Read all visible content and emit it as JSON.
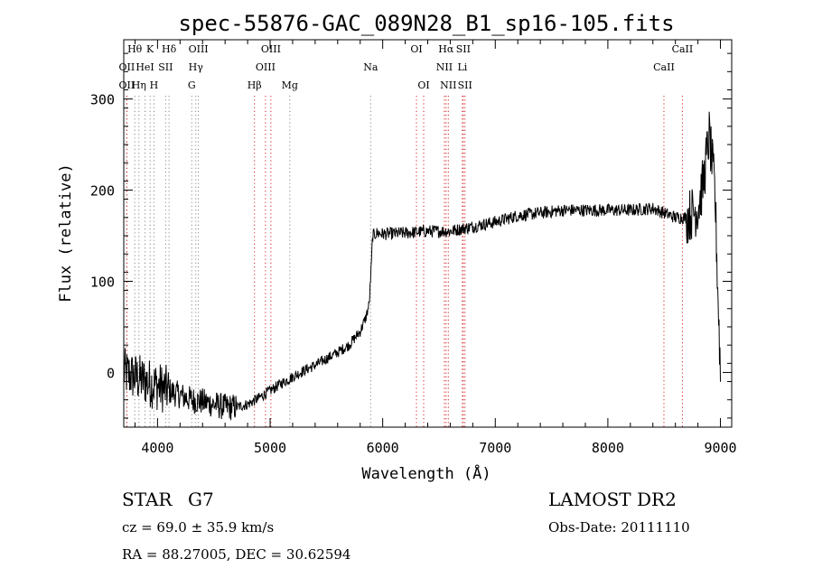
{
  "chart_data": {
    "type": "line",
    "title": "spec-55876-GAC_089N28_B1_sp16-105.fits",
    "xlabel": "Wavelength (Å)",
    "ylabel": "Flux (relative)",
    "xlim": [
      3700,
      9100
    ],
    "ylim": [
      -60,
      365
    ],
    "xticks": [
      4000,
      5000,
      6000,
      7000,
      8000,
      9000
    ],
    "yticks": [
      0,
      100,
      200,
      300
    ],
    "grid": false,
    "spectrum_anchors": {
      "x": [
        3700,
        3800,
        3900,
        4000,
        4100,
        4200,
        4300,
        4400,
        4500,
        4600,
        4700,
        4800,
        4900,
        5000,
        5100,
        5200,
        5300,
        5400,
        5500,
        5600,
        5700,
        5800,
        5850,
        5880,
        5900,
        5910,
        5950,
        6000,
        6200,
        6400,
        6600,
        6800,
        7000,
        7200,
        7400,
        7600,
        7800,
        8000,
        8200,
        8400,
        8500,
        8600,
        8700,
        8800,
        8850,
        8900,
        8950,
        9000
      ],
      "y": [
        0,
        -5,
        -10,
        -15,
        -20,
        -25,
        -30,
        -32,
        -35,
        -38,
        -38,
        -35,
        -28,
        -20,
        -12,
        -5,
        2,
        8,
        15,
        22,
        30,
        45,
        60,
        75,
        120,
        150,
        153,
        152,
        153,
        155,
        155,
        160,
        165,
        172,
        175,
        178,
        178,
        178,
        178,
        180,
        175,
        170,
        170,
        180,
        210,
        260,
        200,
        0
      ]
    },
    "lines_emission_red": [
      {
        "label": "OII",
        "x": 3727,
        "row": 2
      },
      {
        "label": "Hβ",
        "x": 4861,
        "row": 3
      },
      {
        "label": "OIII",
        "x": 4959,
        "row": 2
      },
      {
        "label": "OIII",
        "x": 5007,
        "row": 1
      },
      {
        "label": "OI",
        "x": 6300,
        "row": 1
      },
      {
        "label": "OI",
        "x": 6364,
        "row": 3
      },
      {
        "label": "NII",
        "x": 6548,
        "row": 2
      },
      {
        "label": "Hα",
        "x": 6563,
        "row": 1
      },
      {
        "label": "NII",
        "x": 6583,
        "row": 3
      },
      {
        "label": "Li",
        "x": 6708,
        "row": 2
      },
      {
        "label": "SII",
        "x": 6716,
        "row": 1
      },
      {
        "label": "SII",
        "x": 6731,
        "row": 3
      },
      {
        "label": "CaII",
        "x": 8498,
        "row": 2
      },
      {
        "label": "CaII",
        "x": 8662,
        "row": 1
      }
    ],
    "lines_absorption_gray": [
      {
        "label": "OII",
        "x": 3727,
        "row": 3
      },
      {
        "label": "Hθ",
        "x": 3798,
        "row": 1
      },
      {
        "label": "Hη",
        "x": 3835,
        "row": 3
      },
      {
        "label": "HeI",
        "x": 3889,
        "row": 2
      },
      {
        "label": "K",
        "x": 3934,
        "row": 1
      },
      {
        "label": "H",
        "x": 3968,
        "row": 3
      },
      {
        "label": "SII",
        "x": 4072,
        "row": 2
      },
      {
        "label": "Hδ",
        "x": 4102,
        "row": 1
      },
      {
        "label": "G",
        "x": 4304,
        "row": 3
      },
      {
        "label": "Hγ",
        "x": 4340,
        "row": 2
      },
      {
        "label": "OIII",
        "x": 4363,
        "row": 1
      },
      {
        "label": "Mg",
        "x": 5175,
        "row": 3
      },
      {
        "label": "Na",
        "x": 5893,
        "row": 2
      }
    ]
  },
  "info": {
    "object_type": "STAR",
    "subclass": "G7",
    "survey": "LAMOST DR2",
    "cz_text": "cz = 69.0 ± 35.9 km/s",
    "obs_date_text": "Obs-Date: 20111110",
    "coords_text": "RA =  88.27005, DEC =  30.62594"
  }
}
